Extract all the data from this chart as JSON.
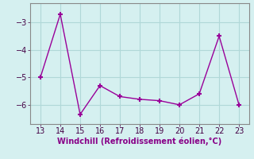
{
  "x": [
    13,
    14,
    15,
    16,
    17,
    18,
    19,
    20,
    21,
    22,
    23
  ],
  "y": [
    -5.0,
    -2.7,
    -6.35,
    -5.3,
    -5.7,
    -5.8,
    -5.85,
    -6.0,
    -5.6,
    -3.5,
    -6.0
  ],
  "line_color": "#990099",
  "marker": "+",
  "marker_size": 5,
  "marker_lw": 1.5,
  "bg_color": "#d5f0f0",
  "grid_color": "#b0d8d8",
  "xlabel": "Windchill (Refroidissement éolien,°C)",
  "xlabel_color": "#880088",
  "xlabel_fontsize": 7.0,
  "xlim": [
    12.5,
    23.5
  ],
  "ylim": [
    -6.7,
    -2.3
  ],
  "yticks": [
    -6,
    -5,
    -4,
    -3
  ],
  "xticks": [
    13,
    14,
    15,
    16,
    17,
    18,
    19,
    20,
    21,
    22,
    23
  ],
  "tick_fontsize": 7.0,
  "tick_color": "#440044",
  "spine_color": "#888888",
  "line_width": 1.0
}
